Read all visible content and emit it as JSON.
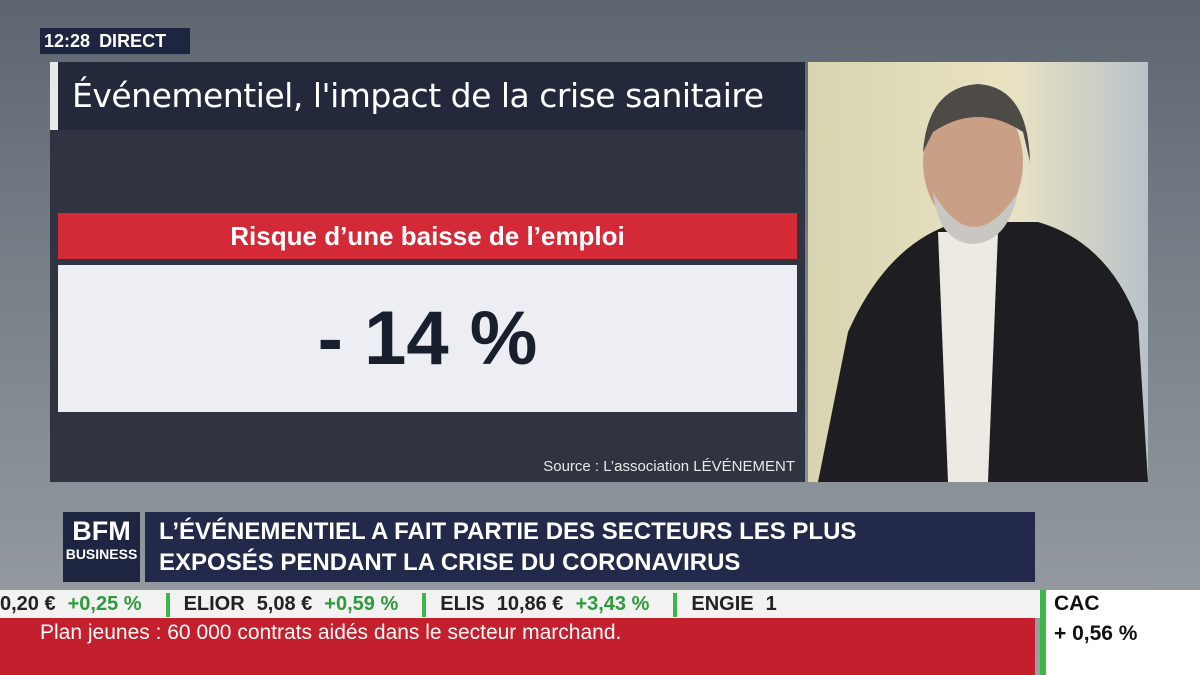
{
  "clock": {
    "time": "12:28",
    "label": "DIRECT"
  },
  "panel": {
    "title": "Événementiel, l'impact de la crise sanitaire",
    "subtitle": "Risque d’une baisse de l’emploi",
    "figure": "- 14 %",
    "source": "Source : L’association LÉVÉNEMENT"
  },
  "logo": {
    "line1": "BFM",
    "line2": "BUSINESS"
  },
  "headline": {
    "line1": "L’ÉVÉNEMENTIEL A FAIT PARTIE DES SECTEURS LES PLUS",
    "line2": "EXPOSÉS PENDANT LA CRISE DU CORONAVIRUS"
  },
  "ticker": {
    "items": [
      {
        "name": "",
        "price": "0,20 €",
        "change": "+0,25 %"
      },
      {
        "name": "ELIOR",
        "price": "5,08 €",
        "change": "+0,59 %"
      },
      {
        "name": "ELIS",
        "price": "10,86 €",
        "change": "+3,43 %"
      },
      {
        "name": "ENGIE",
        "price": "1",
        "change": ""
      }
    ]
  },
  "index": {
    "name": "CAC",
    "change": "+ 0,56 %"
  },
  "news": "Plan jeunes : 60 000 contrats aidés dans le secteur marchand."
}
